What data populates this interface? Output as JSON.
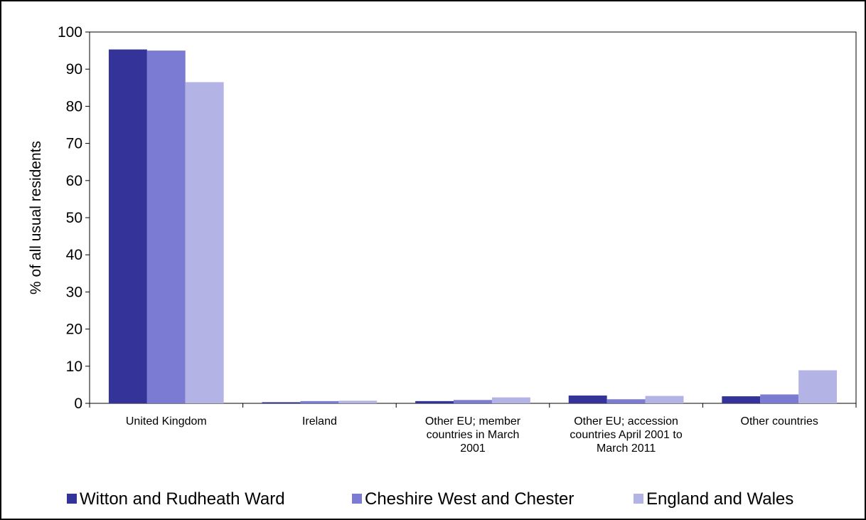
{
  "chart_data": {
    "type": "bar",
    "title": "",
    "xlabel": "",
    "ylabel": "% of all usual residents",
    "ylim": [
      0,
      100
    ],
    "yticks": [
      0,
      10,
      20,
      30,
      40,
      50,
      60,
      70,
      80,
      90,
      100
    ],
    "grid": false,
    "legend_position": "bottom",
    "categories": [
      [
        "United Kingdom"
      ],
      [
        "Ireland"
      ],
      [
        "Other EU; member",
        "countries in March",
        "2001"
      ],
      [
        "Other EU; accession",
        "countries April 2001 to",
        "March 2011"
      ],
      [
        "Other countries"
      ]
    ],
    "series": [
      {
        "name": "Witton and Rudheath Ward",
        "color": "#333399",
        "values": [
          95.3,
          0.3,
          0.6,
          2.1,
          1.9
        ]
      },
      {
        "name": "Cheshire West and Chester",
        "color": "#7b7bd4",
        "values": [
          95.0,
          0.6,
          0.9,
          1.1,
          2.4
        ]
      },
      {
        "name": "England and Wales",
        "color": "#b3b3e6",
        "values": [
          86.5,
          0.7,
          1.6,
          2.0,
          8.9
        ]
      }
    ]
  }
}
